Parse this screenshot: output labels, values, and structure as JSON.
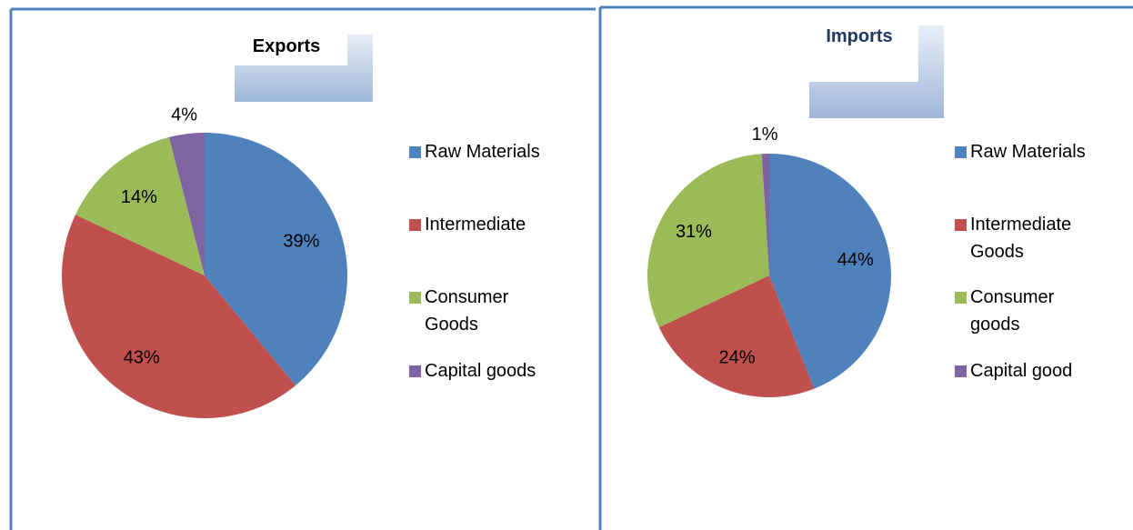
{
  "chart_data": [
    {
      "type": "pie",
      "title": "Exports",
      "categories": [
        "Raw Materials",
        "Intermediate",
        "Consumer Goods",
        "Capital goods"
      ],
      "values": [
        39,
        43,
        14,
        4
      ],
      "value_labels": [
        "39%",
        "43%",
        "14%",
        "4%"
      ],
      "colors": [
        "#4f81bd",
        "#c0504d",
        "#9bbb59",
        "#8064a2"
      ],
      "legend": "right"
    },
    {
      "type": "pie",
      "title": "Imports",
      "categories": [
        "Raw Materials",
        "Intermediate Goods",
        "Consumer goods",
        "Capital good"
      ],
      "values": [
        44,
        24,
        31,
        1
      ],
      "value_labels": [
        "44%",
        "24%",
        "31%",
        "1%"
      ],
      "colors": [
        "#4f81bd",
        "#c0504d",
        "#9bbb59",
        "#8064a2"
      ],
      "legend": "right"
    }
  ]
}
